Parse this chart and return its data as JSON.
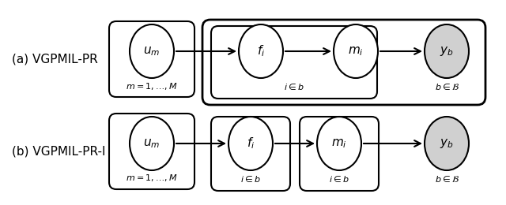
{
  "fig_width": 6.4,
  "fig_height": 2.6,
  "dpi": 100,
  "background": "#ffffff",
  "label_a": "(a) VGPMIL-PR",
  "label_b": "(b) VGPMIL-PR-I",
  "node_color_white": "#ffffff",
  "node_color_gray": "#d0d0d0",
  "font_size_node": 11,
  "font_size_subscript": 8,
  "font_size_title": 11
}
